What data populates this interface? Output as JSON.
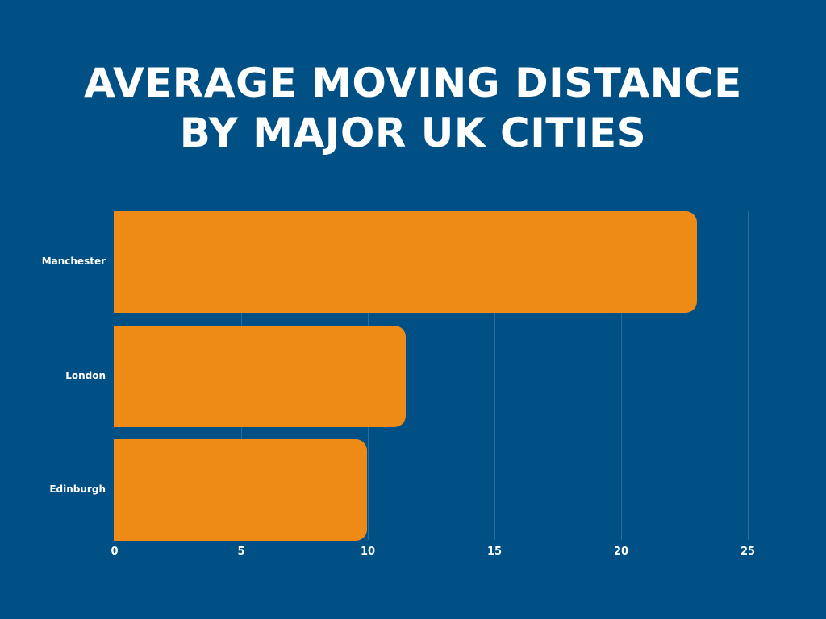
{
  "title": {
    "line1": "AVERAGE MOVING DISTANCE",
    "line2": "BY MAJOR UK CITIES"
  },
  "colors": {
    "background": "#015085",
    "bar": "#ee8b17",
    "text": "#ffffff"
  },
  "chart_data": {
    "type": "bar",
    "orientation": "horizontal",
    "title": "AVERAGE MOVING DISTANCE BY MAJOR UK CITIES",
    "categories": [
      "Manchester",
      "London",
      "Edinburgh"
    ],
    "values": [
      23,
      11.5,
      10
    ],
    "xlabel": "",
    "ylabel": "",
    "xlim": [
      0,
      25
    ],
    "xticks": [
      "0",
      "5",
      "10",
      "15",
      "20",
      "25"
    ],
    "grid": true,
    "legend": null
  }
}
